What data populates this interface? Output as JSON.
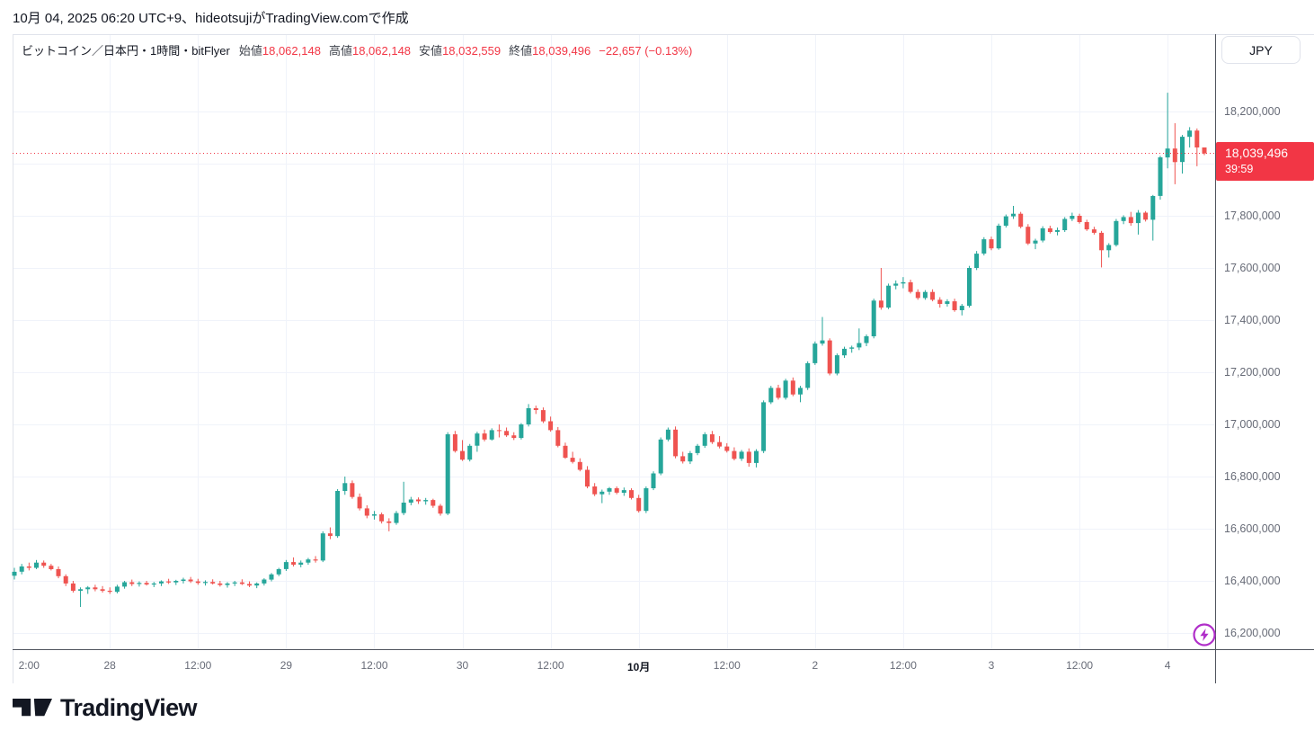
{
  "attribution": "10月 04, 2025 06:20 UTC+9、hideotsujiがTradingView.comで作成",
  "legend": {
    "symbol_title": "ビットコイン／日本円・1時間・bitFlyer",
    "ohlc": [
      {
        "label": "始値",
        "value": "18,062,148"
      },
      {
        "label": "高値",
        "value": "18,062,148"
      },
      {
        "label": "安値",
        "value": "18,032,559"
      },
      {
        "label": "終値",
        "value": "18,039,496"
      }
    ],
    "change": "−22,657 (−0.13%)"
  },
  "price_axis": {
    "currency_button": "JPY",
    "labels": [
      {
        "text": "18,200,000",
        "price": 18200000
      },
      {
        "text": "17,800,000",
        "price": 17800000
      },
      {
        "text": "17,600,000",
        "price": 17600000
      },
      {
        "text": "17,400,000",
        "price": 17400000
      },
      {
        "text": "17,200,000",
        "price": 17200000
      },
      {
        "text": "17,000,000",
        "price": 17000000
      },
      {
        "text": "16,800,000",
        "price": 16800000
      },
      {
        "text": "16,600,000",
        "price": 16600000
      },
      {
        "text": "16,400,000",
        "price": 16400000
      },
      {
        "text": "16,200,000",
        "price": 16200000
      }
    ],
    "badge": {
      "price": "18,039,496",
      "countdown": "39:59"
    }
  },
  "time_axis": {
    "labels": [
      {
        "text": "2:00",
        "i": 2,
        "grid": false,
        "emph": false
      },
      {
        "text": "28",
        "i": 13,
        "grid": true,
        "emph": false
      },
      {
        "text": "12:00",
        "i": 25,
        "grid": true,
        "emph": false
      },
      {
        "text": "29",
        "i": 37,
        "grid": true,
        "emph": false
      },
      {
        "text": "12:00",
        "i": 49,
        "grid": true,
        "emph": false
      },
      {
        "text": "30",
        "i": 61,
        "grid": true,
        "emph": false
      },
      {
        "text": "12:00",
        "i": 73,
        "grid": true,
        "emph": false
      },
      {
        "text": "10月",
        "i": 85,
        "grid": true,
        "emph": true
      },
      {
        "text": "12:00",
        "i": 97,
        "grid": true,
        "emph": false
      },
      {
        "text": "2",
        "i": 109,
        "grid": true,
        "emph": false
      },
      {
        "text": "12:00",
        "i": 121,
        "grid": true,
        "emph": false
      },
      {
        "text": "3",
        "i": 133,
        "grid": true,
        "emph": false
      },
      {
        "text": "12:00",
        "i": 145,
        "grid": true,
        "emph": false
      },
      {
        "text": "4",
        "i": 157,
        "grid": true,
        "emph": false
      }
    ]
  },
  "footer": {
    "logo_text": "TradingView"
  },
  "colors": {
    "up": "#26a69a",
    "down": "#ef5350",
    "accent_red": "#f23645",
    "grid": "#f0f3fa",
    "axis_separator": "#50545e",
    "light_border": "#e0e3eb",
    "axis_text": "#676b77",
    "dark_text": "#131722",
    "purple": "#b02ec9"
  },
  "chart_data": {
    "type": "candlestick",
    "title": "ビットコイン／日本円・1時間・bitFlyer",
    "currency": "JPY",
    "interval": "1時間",
    "exchange": "bitFlyer",
    "current_price": 18039496,
    "open": 18062148,
    "high": 18062148,
    "low": 18032559,
    "close": 18039496,
    "ylim": [
      16150000,
      18300000
    ],
    "price_ticks": [
      16200000,
      16400000,
      16600000,
      16800000,
      17000000,
      17200000,
      17400000,
      17600000,
      17800000,
      18000000,
      18200000
    ],
    "candles": [
      [
        16420000,
        16450000,
        16405000,
        16435000
      ],
      [
        16435000,
        16465000,
        16425000,
        16455000
      ],
      [
        16455000,
        16470000,
        16440000,
        16450000
      ],
      [
        16450000,
        16480000,
        16445000,
        16470000
      ],
      [
        16470000,
        16478000,
        16450000,
        16458000
      ],
      [
        16458000,
        16465000,
        16440000,
        16445000
      ],
      [
        16445000,
        16455000,
        16410000,
        16418000
      ],
      [
        16418000,
        16425000,
        16380000,
        16390000
      ],
      [
        16390000,
        16400000,
        16355000,
        16362000
      ],
      [
        16362000,
        16375000,
        16300000,
        16368000
      ],
      [
        16368000,
        16380000,
        16350000,
        16375000
      ],
      [
        16375000,
        16385000,
        16360000,
        16368000
      ],
      [
        16368000,
        16380000,
        16355000,
        16362000
      ],
      [
        16362000,
        16375000,
        16350000,
        16358000
      ],
      [
        16358000,
        16385000,
        16352000,
        16378000
      ],
      [
        16378000,
        16400000,
        16370000,
        16395000
      ],
      [
        16395000,
        16405000,
        16380000,
        16388000
      ],
      [
        16388000,
        16398000,
        16378000,
        16392000
      ],
      [
        16392000,
        16400000,
        16382000,
        16386000
      ],
      [
        16386000,
        16396000,
        16376000,
        16390000
      ],
      [
        16390000,
        16402000,
        16380000,
        16398000
      ],
      [
        16398000,
        16408000,
        16388000,
        16394000
      ],
      [
        16394000,
        16404000,
        16384000,
        16400000
      ],
      [
        16400000,
        16412000,
        16390000,
        16405000
      ],
      [
        16405000,
        16415000,
        16392000,
        16398000
      ],
      [
        16398000,
        16408000,
        16385000,
        16392000
      ],
      [
        16392000,
        16402000,
        16382000,
        16396000
      ],
      [
        16396000,
        16406000,
        16386000,
        16390000
      ],
      [
        16390000,
        16400000,
        16378000,
        16384000
      ],
      [
        16384000,
        16395000,
        16374000,
        16390000
      ],
      [
        16390000,
        16400000,
        16380000,
        16394000
      ],
      [
        16394000,
        16406000,
        16384000,
        16388000
      ],
      [
        16388000,
        16398000,
        16376000,
        16382000
      ],
      [
        16382000,
        16394000,
        16372000,
        16390000
      ],
      [
        16390000,
        16410000,
        16382000,
        16405000
      ],
      [
        16405000,
        16430000,
        16398000,
        16425000
      ],
      [
        16425000,
        16450000,
        16418000,
        16445000
      ],
      [
        16445000,
        16480000,
        16438000,
        16472000
      ],
      [
        16472000,
        16490000,
        16455000,
        16462000
      ],
      [
        16462000,
        16478000,
        16452000,
        16470000
      ],
      [
        16470000,
        16488000,
        16462000,
        16482000
      ],
      [
        16482000,
        16495000,
        16470000,
        16478000
      ],
      [
        16478000,
        16590000,
        16472000,
        16582000
      ],
      [
        16582000,
        16605000,
        16560000,
        16572000
      ],
      [
        16572000,
        16752000,
        16565000,
        16745000
      ],
      [
        16745000,
        16800000,
        16730000,
        16775000
      ],
      [
        16775000,
        16785000,
        16715000,
        16722000
      ],
      [
        16722000,
        16735000,
        16670000,
        16678000
      ],
      [
        16678000,
        16690000,
        16640000,
        16650000
      ],
      [
        16650000,
        16668000,
        16635000,
        16655000
      ],
      [
        16655000,
        16662000,
        16620000,
        16628000
      ],
      [
        16628000,
        16640000,
        16590000,
        16622000
      ],
      [
        16622000,
        16668000,
        16615000,
        16660000
      ],
      [
        16660000,
        16780000,
        16652000,
        16700000
      ],
      [
        16700000,
        16722000,
        16690000,
        16712000
      ],
      [
        16712000,
        16720000,
        16695000,
        16705000
      ],
      [
        16705000,
        16718000,
        16692000,
        16710000
      ],
      [
        16710000,
        16715000,
        16680000,
        16688000
      ],
      [
        16688000,
        16695000,
        16650000,
        16658000
      ],
      [
        16658000,
        16970000,
        16652000,
        16962000
      ],
      [
        16962000,
        16975000,
        16892000,
        16898000
      ],
      [
        16898000,
        16940000,
        16860000,
        16865000
      ],
      [
        16865000,
        16925000,
        16858000,
        16918000
      ],
      [
        16918000,
        16972000,
        16895000,
        16965000
      ],
      [
        16965000,
        16980000,
        16935000,
        16942000
      ],
      [
        16942000,
        16985000,
        16938000,
        16978000
      ],
      [
        16978000,
        17000000,
        16950000,
        16975000
      ],
      [
        16975000,
        16988000,
        16952000,
        16958000
      ],
      [
        16958000,
        16970000,
        16940000,
        16948000
      ],
      [
        16948000,
        17005000,
        16942000,
        17000000
      ],
      [
        17000000,
        17078000,
        16992000,
        17062000
      ],
      [
        17062000,
        17072000,
        17040000,
        17055000
      ],
      [
        17055000,
        17065000,
        17005000,
        17012000
      ],
      [
        17012000,
        17030000,
        16972000,
        16978000
      ],
      [
        16978000,
        16990000,
        16912000,
        16918000
      ],
      [
        16918000,
        16930000,
        16868000,
        16872000
      ],
      [
        16872000,
        16895000,
        16850000,
        16856000
      ],
      [
        16856000,
        16870000,
        16820000,
        16826000
      ],
      [
        16826000,
        16840000,
        16755000,
        16762000
      ],
      [
        16762000,
        16775000,
        16725000,
        16732000
      ],
      [
        16732000,
        16750000,
        16698000,
        16742000
      ],
      [
        16742000,
        16760000,
        16730000,
        16755000
      ],
      [
        16755000,
        16762000,
        16732000,
        16738000
      ],
      [
        16738000,
        16758000,
        16726000,
        16748000
      ],
      [
        16748000,
        16755000,
        16712000,
        16718000
      ],
      [
        16718000,
        16730000,
        16662000,
        16668000
      ],
      [
        16668000,
        16762000,
        16660000,
        16755000
      ],
      [
        16755000,
        16820000,
        16748000,
        16812000
      ],
      [
        16812000,
        16950000,
        16805000,
        16942000
      ],
      [
        16942000,
        16988000,
        16935000,
        16980000
      ],
      [
        16980000,
        16992000,
        16870000,
        16878000
      ],
      [
        16878000,
        16895000,
        16850000,
        16858000
      ],
      [
        16858000,
        16898000,
        16848000,
        16890000
      ],
      [
        16890000,
        16925000,
        16882000,
        16918000
      ],
      [
        16918000,
        16970000,
        16910000,
        16962000
      ],
      [
        16962000,
        16975000,
        16925000,
        16932000
      ],
      [
        16932000,
        16955000,
        16908000,
        16915000
      ],
      [
        16915000,
        16928000,
        16892000,
        16898000
      ],
      [
        16898000,
        16912000,
        16862000,
        16868000
      ],
      [
        16868000,
        16902000,
        16860000,
        16895000
      ],
      [
        16895000,
        16908000,
        16838000,
        16852000
      ],
      [
        16852000,
        16905000,
        16835000,
        16898000
      ],
      [
        16898000,
        17092000,
        16890000,
        17085000
      ],
      [
        17085000,
        17148000,
        17078000,
        17140000
      ],
      [
        17140000,
        17152000,
        17095000,
        17102000
      ],
      [
        17102000,
        17175000,
        17095000,
        17168000
      ],
      [
        17168000,
        17180000,
        17108000,
        17115000
      ],
      [
        17115000,
        17148000,
        17085000,
        17140000
      ],
      [
        17140000,
        17242000,
        17132000,
        17235000
      ],
      [
        17235000,
        17318000,
        17228000,
        17310000
      ],
      [
        17310000,
        17412000,
        17302000,
        17322000
      ],
      [
        17322000,
        17330000,
        17188000,
        17195000
      ],
      [
        17195000,
        17272000,
        17188000,
        17265000
      ],
      [
        17265000,
        17298000,
        17255000,
        17290000
      ],
      [
        17290000,
        17302000,
        17275000,
        17295000
      ],
      [
        17295000,
        17368000,
        17285000,
        17312000
      ],
      [
        17312000,
        17345000,
        17300000,
        17338000
      ],
      [
        17338000,
        17482000,
        17330000,
        17475000
      ],
      [
        17475000,
        17600000,
        17440000,
        17448000
      ],
      [
        17448000,
        17540000,
        17442000,
        17532000
      ],
      [
        17532000,
        17552000,
        17518000,
        17540000
      ],
      [
        17540000,
        17565000,
        17522000,
        17545000
      ],
      [
        17545000,
        17555000,
        17502000,
        17508000
      ],
      [
        17508000,
        17518000,
        17478000,
        17485000
      ],
      [
        17485000,
        17515000,
        17478000,
        17508000
      ],
      [
        17508000,
        17518000,
        17472000,
        17478000
      ],
      [
        17478000,
        17488000,
        17448000,
        17462000
      ],
      [
        17462000,
        17480000,
        17452000,
        17472000
      ],
      [
        17472000,
        17482000,
        17432000,
        17438000
      ],
      [
        17438000,
        17462000,
        17418000,
        17455000
      ],
      [
        17455000,
        17608000,
        17448000,
        17600000
      ],
      [
        17600000,
        17665000,
        17592000,
        17655000
      ],
      [
        17655000,
        17718000,
        17648000,
        17710000
      ],
      [
        17710000,
        17720000,
        17668000,
        17675000
      ],
      [
        17675000,
        17770000,
        17670000,
        17762000
      ],
      [
        17762000,
        17805000,
        17755000,
        17798000
      ],
      [
        17798000,
        17838000,
        17788000,
        17808000
      ],
      [
        17808000,
        17815000,
        17752000,
        17758000
      ],
      [
        17758000,
        17768000,
        17688000,
        17694000
      ],
      [
        17694000,
        17712000,
        17672000,
        17705000
      ],
      [
        17705000,
        17760000,
        17698000,
        17752000
      ],
      [
        17752000,
        17762000,
        17732000,
        17738000
      ],
      [
        17738000,
        17755000,
        17725000,
        17745000
      ],
      [
        17745000,
        17795000,
        17738000,
        17788000
      ],
      [
        17788000,
        17812000,
        17780000,
        17800000
      ],
      [
        17800000,
        17808000,
        17770000,
        17776000
      ],
      [
        17776000,
        17785000,
        17742000,
        17748000
      ],
      [
        17748000,
        17758000,
        17728000,
        17735000
      ],
      [
        17735000,
        17742000,
        17602000,
        17668000
      ],
      [
        17668000,
        17695000,
        17640000,
        17688000
      ],
      [
        17688000,
        17788000,
        17682000,
        17780000
      ],
      [
        17780000,
        17802000,
        17768000,
        17795000
      ],
      [
        17795000,
        17815000,
        17762000,
        17772000
      ],
      [
        17772000,
        17822000,
        17728000,
        17812000
      ],
      [
        17812000,
        17818000,
        17778000,
        17785000
      ],
      [
        17785000,
        17880000,
        17705000,
        17876000
      ],
      [
        17876000,
        18030000,
        17862000,
        18024000
      ],
      [
        18024000,
        18272000,
        17982000,
        18058000
      ],
      [
        18058000,
        18155000,
        17921000,
        18006000
      ],
      [
        18006000,
        18110000,
        17962000,
        18103000
      ],
      [
        18103000,
        18140000,
        18062000,
        18127000
      ],
      [
        18127000,
        18135000,
        17990000,
        18062000
      ],
      [
        18062148,
        18062148,
        18032559,
        18039496
      ]
    ]
  }
}
